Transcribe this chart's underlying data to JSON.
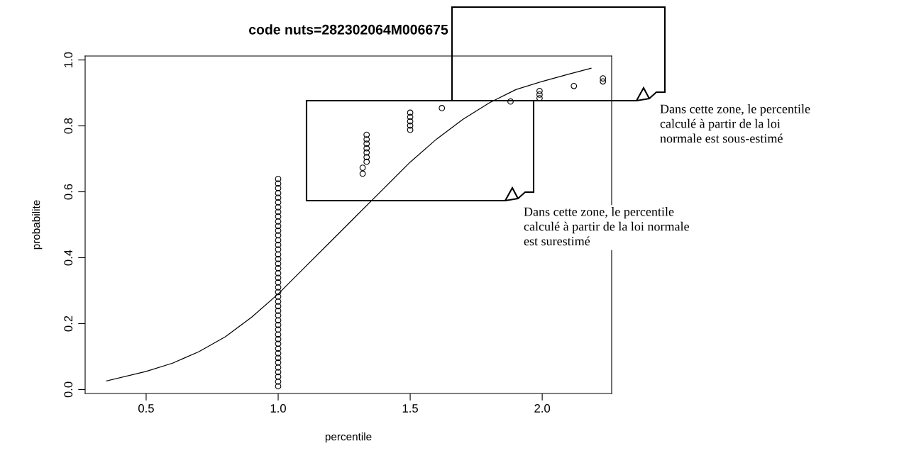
{
  "chart_data": {
    "type": "scatter",
    "title": "code nuts=282302064M006675",
    "xlabel": "percentile",
    "ylabel": "probabilite",
    "xlim": [
      0.269,
      2.263
    ],
    "ylim": [
      -0.012,
      1.012
    ],
    "xticks": [
      0.5,
      {
        "value": 1,
        "label": "1.0"
      },
      1.5,
      {
        "value": 2,
        "label": "2.0"
      }
    ],
    "yticks": [
      {
        "value": 0,
        "label": "0.0"
      },
      0.2,
      0.4,
      0.6,
      0.8,
      {
        "value": 1,
        "label": "1.0"
      }
    ],
    "grid": false,
    "legend": false,
    "series": [
      {
        "marker": "circle",
        "color": "#000000",
        "x": [
          1,
          1,
          1,
          1,
          1,
          1,
          1,
          1,
          1,
          1,
          1,
          1,
          1,
          1,
          1,
          1,
          1,
          1,
          1,
          1,
          1,
          1,
          1,
          1,
          1,
          1,
          1,
          1,
          1,
          1,
          1,
          1,
          1,
          1,
          1,
          1,
          1,
          1,
          1,
          1,
          1,
          1,
          1,
          1,
          1,
          1.32,
          1.32,
          1.335,
          1.335,
          1.335,
          1.335,
          1.335,
          1.335,
          1.335,
          1.5,
          1.5,
          1.5,
          1.5,
          1.5,
          1.62,
          1.88,
          1.99,
          1.99,
          1.99,
          2.12,
          2.23,
          2.23
        ],
        "values": [
          0.01,
          0.024,
          0.039,
          0.053,
          0.067,
          0.082,
          0.096,
          0.11,
          0.124,
          0.139,
          0.153,
          0.167,
          0.182,
          0.196,
          0.21,
          0.225,
          0.239,
          0.253,
          0.267,
          0.282,
          0.296,
          0.31,
          0.325,
          0.339,
          0.353,
          0.368,
          0.382,
          0.396,
          0.41,
          0.425,
          0.439,
          0.453,
          0.468,
          0.482,
          0.496,
          0.51,
          0.525,
          0.539,
          0.553,
          0.568,
          0.582,
          0.596,
          0.611,
          0.625,
          0.639,
          0.655,
          0.673,
          0.691,
          0.705,
          0.719,
          0.732,
          0.746,
          0.759,
          0.773,
          0.788,
          0.801,
          0.814,
          0.827,
          0.84,
          0.854,
          0.874,
          0.884,
          0.895,
          0.906,
          0.921,
          0.935,
          0.944
        ]
      },
      {
        "type": "line",
        "marker": "none",
        "color": "#000000",
        "x": [
          0.35,
          0.5,
          0.6,
          0.7,
          0.8,
          0.9,
          1.0,
          1.1,
          1.2,
          1.3,
          1.4,
          1.5,
          1.6,
          1.7,
          1.8,
          1.9,
          2.0,
          2.1,
          2.185
        ],
        "values": [
          0.026,
          0.055,
          0.08,
          0.115,
          0.16,
          0.22,
          0.29,
          0.37,
          0.45,
          0.53,
          0.61,
          0.69,
          0.76,
          0.82,
          0.87,
          0.91,
          0.935,
          0.957,
          0.975
        ]
      }
    ],
    "annotations": [
      "Dans cette zone, le percentile\ncalculé à partir de la loi\nnormale est sous-estimé",
      "Dans cette zone, le percentile\ncalculé à partir de la loi normale\nest surestimé"
    ]
  }
}
